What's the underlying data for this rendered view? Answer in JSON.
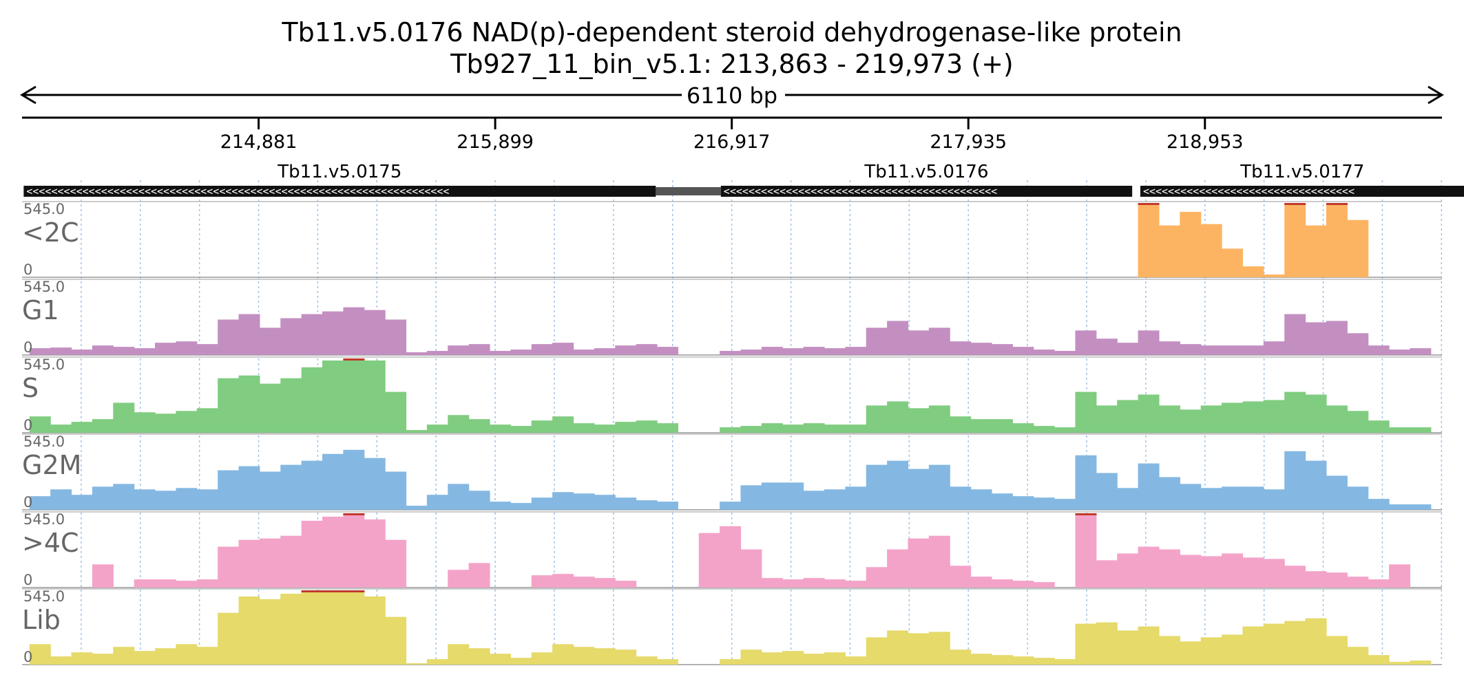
{
  "chart_data": {
    "type": "area",
    "title": "Tb11.v5.0176  NAD(p)-dependent steroid dehydrogenase-like protein",
    "subtitle": "Tb927_11_bin_v5.1: 213,863 - 219,973 (+)",
    "span_label": "6110 bp",
    "region": {
      "start": 213863,
      "end": 219973
    },
    "x_ticks": [
      {
        "pos": 214881,
        "label": "214,881"
      },
      {
        "pos": 215899,
        "label": "215,899"
      },
      {
        "pos": 216917,
        "label": "216,917"
      },
      {
        "pos": 217935,
        "label": "217,935"
      },
      {
        "pos": 218953,
        "label": "218,953"
      }
    ],
    "genes": [
      {
        "name": "Tb11.v5.0175",
        "start": 213870,
        "end": 216590,
        "utr_end": 216615,
        "strand": "-"
      },
      {
        "name": "Tb11.v5.0176",
        "start": 216870,
        "end": 218640,
        "utr_start": 216590,
        "utr_end": 216870,
        "strand": "-"
      },
      {
        "name": "Tb11.v5.0177",
        "start": 218675,
        "end": 220070,
        "utr_end": 220120,
        "strand": "-"
      }
    ],
    "ylim": [
      0,
      545
    ],
    "ymax_label": "545.0",
    "ymin_label": "0",
    "x": [
      213940,
      214030,
      214120,
      214210,
      214300,
      214390,
      214480,
      214570,
      214660,
      214750,
      214840,
      214930,
      215020,
      215110,
      215200,
      215290,
      215380,
      215470,
      215560,
      215650,
      215740,
      215830,
      215920,
      216010,
      216100,
      216190,
      216280,
      216370,
      216460,
      216550,
      216640,
      216730,
      216820,
      216910,
      217000,
      217090,
      217180,
      217270,
      217360,
      217450,
      217540,
      217630,
      217720,
      217810,
      217900,
      217990,
      218080,
      218170,
      218260,
      218350,
      218440,
      218530,
      218620,
      218710,
      218800,
      218890,
      218980,
      219070,
      219160,
      219250,
      219340,
      219430,
      219520,
      219610,
      219700,
      219790,
      219880
    ],
    "series": [
      {
        "name": "<2C",
        "color": "#fdb462",
        "values": [
          0,
          0,
          0,
          0,
          0,
          0,
          0,
          0,
          0,
          0,
          0,
          0,
          0,
          0,
          0,
          0,
          0,
          0,
          0,
          0,
          0,
          0,
          0,
          0,
          0,
          0,
          0,
          0,
          0,
          0,
          0,
          0,
          0,
          0,
          0,
          0,
          0,
          0,
          0,
          0,
          0,
          0,
          0,
          0,
          0,
          0,
          0,
          0,
          0,
          0,
          0,
          0,
          0,
          545,
          380,
          480,
          390,
          210,
          80,
          20,
          545,
          380,
          545,
          420,
          0,
          0,
          0
        ]
      },
      {
        "name": "G1",
        "color": "#c38fc1",
        "values": [
          50,
          55,
          40,
          70,
          60,
          50,
          90,
          100,
          80,
          260,
          300,
          200,
          270,
          300,
          320,
          350,
          330,
          260,
          20,
          30,
          70,
          80,
          30,
          40,
          80,
          90,
          40,
          50,
          70,
          80,
          60,
          0,
          0,
          30,
          40,
          60,
          50,
          60,
          50,
          60,
          200,
          250,
          180,
          200,
          100,
          90,
          80,
          60,
          40,
          30,
          180,
          120,
          90,
          180,
          100,
          80,
          70,
          70,
          70,
          100,
          300,
          240,
          250,
          160,
          70,
          40,
          50
        ]
      },
      {
        "name": "S",
        "color": "#80cc80",
        "values": [
          120,
          60,
          80,
          100,
          220,
          150,
          140,
          160,
          180,
          400,
          420,
          360,
          400,
          480,
          530,
          545,
          530,
          300,
          20,
          60,
          130,
          100,
          60,
          50,
          90,
          120,
          70,
          60,
          80,
          90,
          70,
          0,
          0,
          40,
          50,
          70,
          60,
          70,
          60,
          60,
          200,
          230,
          180,
          200,
          120,
          100,
          100,
          70,
          50,
          40,
          300,
          200,
          240,
          280,
          200,
          170,
          200,
          220,
          230,
          240,
          300,
          280,
          200,
          160,
          90,
          40,
          40
        ]
      },
      {
        "name": "G2M",
        "color": "#84b8e2",
        "values": [
          100,
          150,
          110,
          170,
          190,
          150,
          140,
          160,
          150,
          290,
          320,
          280,
          330,
          360,
          410,
          440,
          380,
          280,
          30,
          110,
          190,
          140,
          60,
          50,
          90,
          130,
          120,
          110,
          90,
          70,
          60,
          0,
          0,
          60,
          180,
          200,
          200,
          140,
          150,
          170,
          330,
          360,
          300,
          330,
          170,
          150,
          120,
          100,
          90,
          80,
          400,
          270,
          160,
          340,
          240,
          190,
          160,
          170,
          170,
          150,
          430,
          360,
          250,
          170,
          80,
          40,
          40
        ]
      },
      {
        "name": ">4C",
        "color": "#f4a3c8",
        "values": [
          0,
          0,
          0,
          170,
          0,
          60,
          60,
          50,
          60,
          300,
          350,
          360,
          380,
          490,
          520,
          545,
          500,
          350,
          0,
          0,
          130,
          180,
          0,
          0,
          90,
          100,
          80,
          70,
          50,
          0,
          0,
          0,
          400,
          450,
          280,
          70,
          60,
          70,
          60,
          50,
          150,
          280,
          360,
          380,
          160,
          80,
          60,
          50,
          40,
          0,
          545,
          200,
          250,
          300,
          280,
          240,
          230,
          250,
          220,
          210,
          160,
          120,
          110,
          80,
          60,
          170,
          0
        ]
      },
      {
        "name": "Lib",
        "color": "#e5da6a",
        "values": [
          150,
          60,
          90,
          80,
          130,
          100,
          120,
          150,
          130,
          380,
          500,
          480,
          520,
          545,
          545,
          545,
          500,
          350,
          10,
          40,
          150,
          120,
          80,
          50,
          90,
          150,
          130,
          120,
          110,
          60,
          40,
          0,
          0,
          40,
          110,
          90,
          100,
          80,
          90,
          60,
          200,
          250,
          230,
          240,
          110,
          80,
          70,
          60,
          50,
          40,
          300,
          310,
          250,
          280,
          210,
          170,
          200,
          220,
          280,
          300,
          320,
          340,
          210,
          130,
          70,
          20,
          30
        ]
      }
    ]
  }
}
